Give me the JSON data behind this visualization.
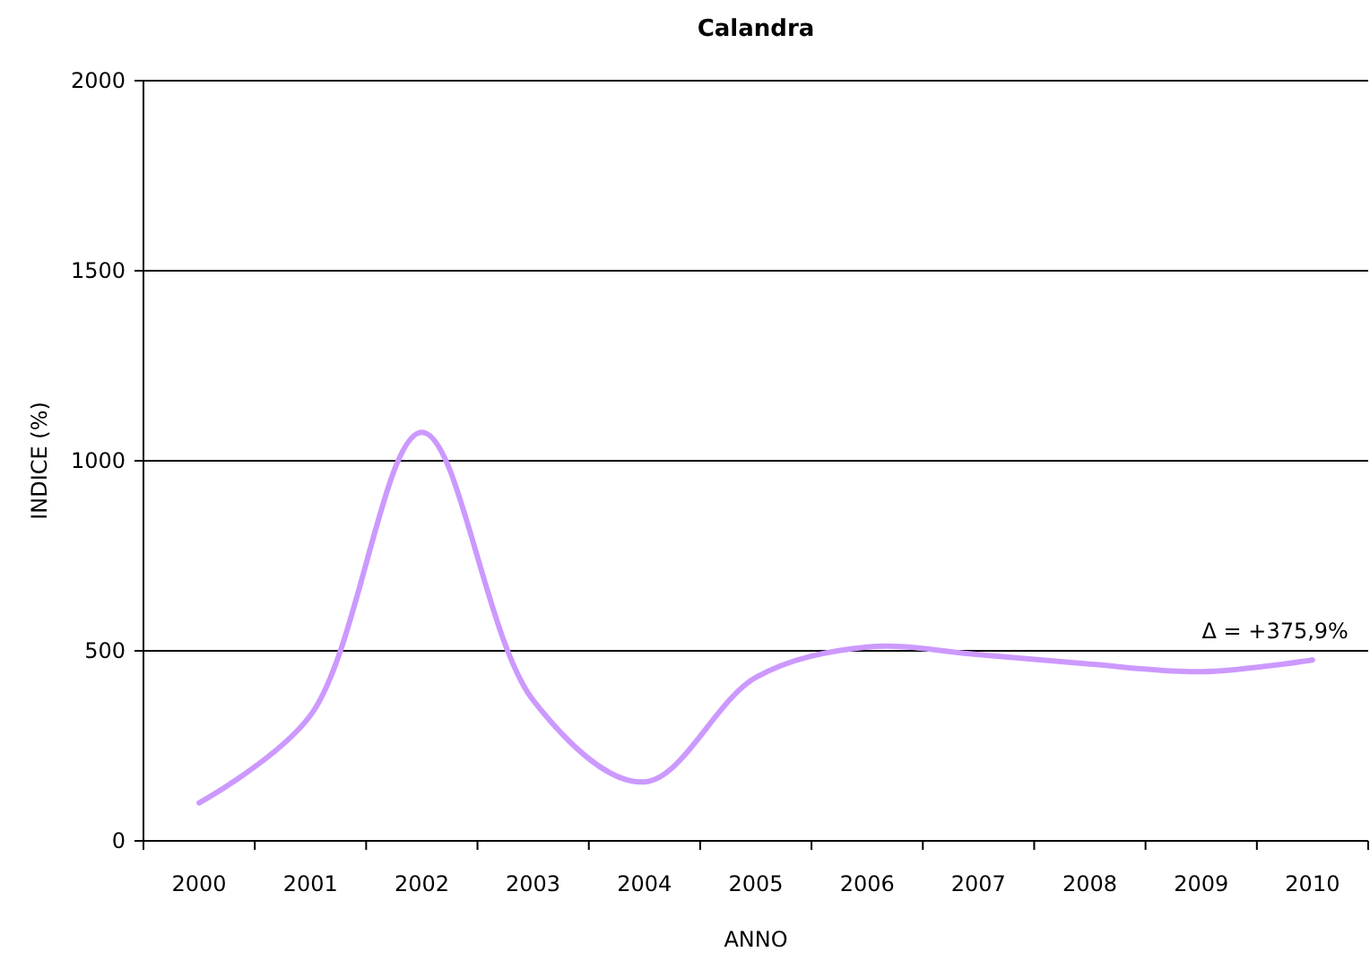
{
  "chart_data": {
    "type": "line",
    "title": "Calandra",
    "xlabel": "ANNO",
    "ylabel": "INDICE (%)",
    "categories": [
      "2000",
      "2001",
      "2002",
      "2003",
      "2004",
      "2005",
      "2006",
      "2007",
      "2008",
      "2009",
      "2010"
    ],
    "series": [
      {
        "color": "#cc99ff",
        "values": [
          100,
          330,
          1075,
          370,
          155,
          430,
          510,
          490,
          465,
          445,
          476
        ]
      }
    ],
    "ylim": [
      0,
      2000
    ],
    "yticks": [
      0,
      500,
      1000,
      1500,
      2000
    ],
    "grid": "y",
    "marker": "none",
    "line_style": "solid",
    "annotations": [
      {
        "text": "Δ = +375,9%",
        "x": "2010",
        "y": 476
      }
    ]
  }
}
